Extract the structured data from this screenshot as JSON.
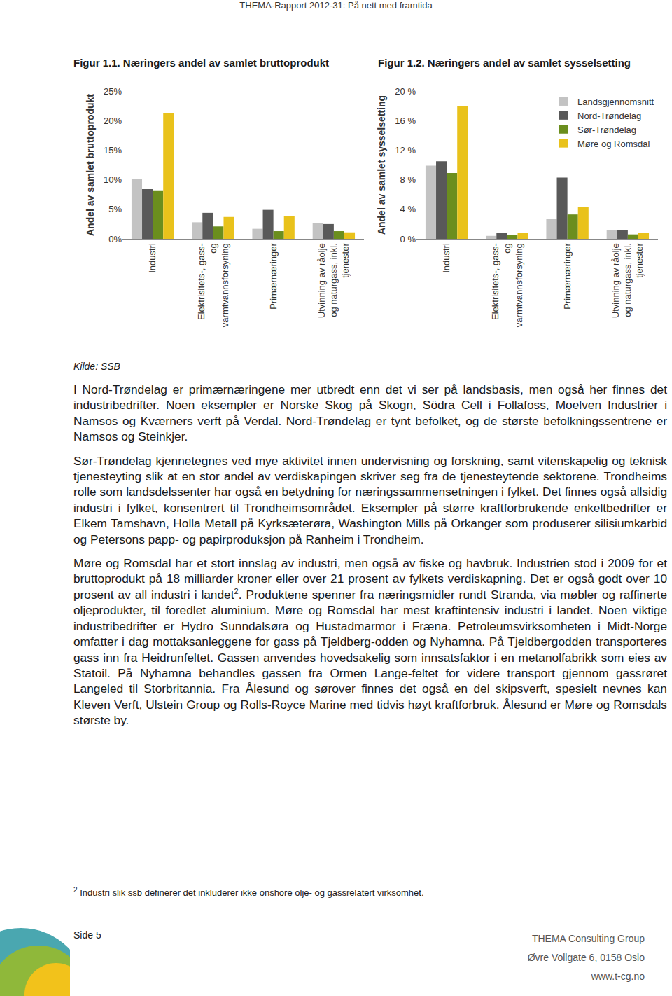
{
  "header": "THEMA-Rapport 2012-31: På nett med framtida",
  "chart_data": [
    {
      "type": "bar",
      "title": "Figur 1.1. Næringers andel av samlet bruttoprodukt",
      "y_label": "Andel av samlet bruttoprodukt",
      "categories": [
        "Industri",
        "Elektrisitets-, gass-\nog\nvarmtvannsforsyning",
        "Primærnæringer",
        "Utvinning av råolje\nog naturgass, inkl.\ntjenester"
      ],
      "series": [
        {
          "name": "Landsgjennomsnitt",
          "color": "#c3c3c3",
          "values": [
            10.1,
            2.8,
            1.7,
            2.7
          ]
        },
        {
          "name": "Nord-Trøndelag",
          "color": "#595959",
          "values": [
            8.4,
            4.4,
            4.9,
            2.5
          ]
        },
        {
          "name": "Sør-Trøndelag",
          "color": "#6b8e1e",
          "values": [
            8.2,
            2.1,
            1.3,
            1.3
          ]
        },
        {
          "name": "Møre og Romsdal",
          "color": "#e9c21b",
          "values": [
            21.2,
            3.7,
            3.9,
            1.1
          ]
        }
      ],
      "ylim": [
        0,
        25
      ],
      "yticks": [
        {
          "value": 0,
          "label": "0%"
        },
        {
          "value": 5,
          "label": "5%"
        },
        {
          "value": 10,
          "label": "10%"
        },
        {
          "value": 15,
          "label": "15%"
        },
        {
          "value": 20,
          "label": "20%"
        },
        {
          "value": 25,
          "label": "25%"
        }
      ],
      "grid": false
    },
    {
      "type": "bar",
      "title": "Figur 1.2. Næringers andel av samlet sysselsetting",
      "y_label": "Andel av samlet sysselsetting",
      "categories": [
        "Industri",
        "Elektrisitets-, gass-\nog\nvarmtvannsforsyning",
        "Primærnæringer",
        "Utvinning av råolje\nog naturgass, inkl.\ntjenester"
      ],
      "series": [
        {
          "name": "Landsgjennomsnitt",
          "color": "#c3c3c3",
          "values": [
            9.9,
            0.4,
            2.7,
            1.2
          ]
        },
        {
          "name": "Nord-Trøndelag",
          "color": "#595959",
          "values": [
            10.5,
            0.8,
            8.3,
            1.2
          ]
        },
        {
          "name": "Sør-Trøndelag",
          "color": "#6b8e1e",
          "values": [
            8.9,
            0.5,
            3.3,
            0.6
          ]
        },
        {
          "name": "Møre og Romsdal",
          "color": "#e9c21b",
          "values": [
            18.0,
            0.8,
            4.3,
            0.8
          ]
        }
      ],
      "ylim": [
        0,
        20
      ],
      "yticks": [
        {
          "value": 0,
          "label": "0 %"
        },
        {
          "value": 4,
          "label": "4 %"
        },
        {
          "value": 8,
          "label": "8 %"
        },
        {
          "value": 12,
          "label": "12 %"
        },
        {
          "value": 16,
          "label": "16 %"
        },
        {
          "value": 20,
          "label": "20 %"
        }
      ],
      "grid": false,
      "legend": "upper right"
    }
  ],
  "source": "Kilde: SSB",
  "paragraphs": [
    [
      {
        "text": "I Nord-Trøndelag er primærnæringene mer utbredt enn det vi ser på landsbasis, men også her finnes det industribedrifter. Noen eksempler er Norske Skog på Skogn, Södra Cell i Follafoss, Moelven Industrier i Namsos og Kværners verft på Verdal. Nord-Trøndelag er tynt befolket, og de største befolkningssentrene er Namsos og Steinkjer."
      }
    ],
    [
      {
        "text": "Sør-Trøndelag kjennetegnes ved mye aktivitet innen undervisning og forskning, samt vitenskapelig og teknisk tjenesteyting slik at en stor andel av verdiskapingen skriver seg fra de tjenesteytende sektorene. Trondheims rolle som landsdelssenter har også en betydning for næringssammensetningen i fylket. Det finnes også allsidig industri i fylket, konsentrert til Trondheimsområdet. Eksempler på større kraftforbrukende enkeltbedrifter er Elkem Tamshavn, Holla Metall på Kyrksæterøra, Washington Mills på Orkanger som produserer silisiumkarbid og Petersons papp- og papirproduksjon på Ranheim i Trondheim."
      }
    ],
    [
      {
        "text": "Møre og Romsdal har et stort innslag av industri, men også av fiske og havbruk. Industrien stod i 2009 for et bruttoprodukt på 18 milliarder kroner eller over 21 prosent av fylkets verdiskapning. Det er også godt over 10 prosent av all industri i landet"
      },
      {
        "sup": "2"
      },
      {
        "text": ". Produktene spenner fra næringsmidler rundt Stranda, via møbler og raffinerte oljeprodukter, til foredlet aluminium. Møre og Romsdal har mest kraftintensiv industri i landet. Noen viktige industribedrifter er Hydro Sunndalsøra og Hustadmarmor i Fræna. Petroleumsvirksomheten i Midt-Norge omfatter i dag mottaksanleggene for gass på Tjeldberg-odden og Nyhamna. På Tjeldbergodden transporteres gass inn fra Heidrunfeltet. Gassen anvendes hovedsakelig som innsatsfaktor i en metanolfabrikk som eies av Statoil. På Nyhamna behandles gassen fra Ormen Lange-feltet for videre transport gjennom gassrøret Langeled til Storbritannia. Fra Ålesund og sørover finnes det også en del skipsverft, spesielt nevnes kan Kleven Verft, Ulstein Group og Rolls-Royce Marine med tidvis høyt kraftforbruk. Ålesund er Møre og Romsdals største by."
      }
    ]
  ],
  "footnote": {
    "mark": "2",
    "text": "Industri slik ssb definerer det inkluderer ikke onshore olje- og gassrelatert virksomhet."
  },
  "footer": {
    "page": "Side 5",
    "company": "THEMA Consulting Group",
    "address": "Øvre Vollgate 6, 0158 Oslo",
    "web": "www.t-cg.no"
  }
}
